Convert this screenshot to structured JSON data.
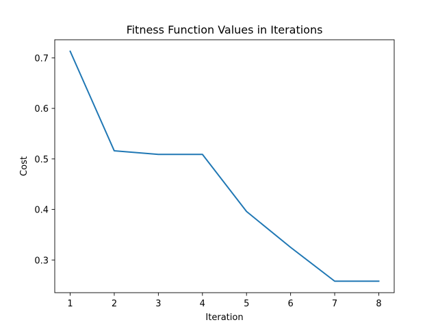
{
  "chart_data": {
    "type": "line",
    "title": "Fitness Function Values in Iterations",
    "xlabel": "Iteration",
    "ylabel": "Cost",
    "x": [
      1,
      2,
      3,
      4,
      5,
      6,
      7,
      8
    ],
    "series": [
      {
        "values": [
          0.713,
          0.516,
          0.509,
          0.509,
          0.396,
          0.325,
          0.258,
          0.258
        ],
        "color": "#1f77b4"
      }
    ],
    "xticks": [
      1,
      2,
      3,
      4,
      5,
      6,
      7,
      8
    ],
    "xtick_labels": [
      "1",
      "2",
      "3",
      "4",
      "5",
      "6",
      "7",
      "8"
    ],
    "yticks": [
      0.3,
      0.4,
      0.5,
      0.6,
      0.7
    ],
    "ytick_labels": [
      "0.3",
      "0.4",
      "0.5",
      "0.6",
      "0.7"
    ],
    "xlim": [
      0.65,
      8.35
    ],
    "ylim": [
      0.2353,
      0.7358
    ],
    "grid": false,
    "legend": "none"
  }
}
